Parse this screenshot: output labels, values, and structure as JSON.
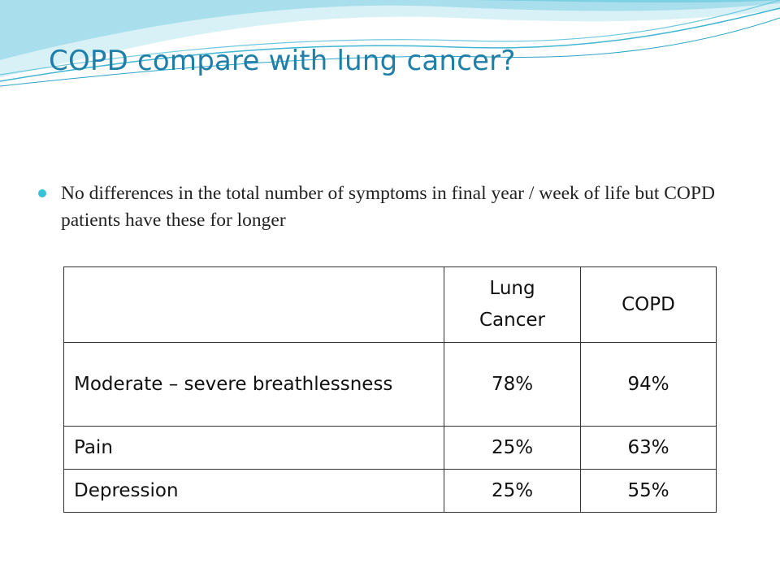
{
  "slide": {
    "title": "COPD compare with lung cancer?",
    "bullets": [
      "No differences in the total number of symptoms  in final year / week of life but COPD patients have these for longer"
    ],
    "colors": {
      "title": "#1f7fa8",
      "bullet": "#35c3d8",
      "wave_light": "#b9e6ef",
      "wave_mid": "#6cc8de",
      "wave_dark": "#2aa5c6"
    }
  },
  "table": {
    "header": {
      "blank": "",
      "col1": "Lung Cancer",
      "col2": "COPD"
    },
    "rows": [
      {
        "label": "Moderate – severe breathlessness",
        "lung_cancer": "78%",
        "copd": "94%"
      },
      {
        "label": "Pain",
        "lung_cancer": "25%",
        "copd": "63%"
      },
      {
        "label": "Depression",
        "lung_cancer": "25%",
        "copd": "55%"
      }
    ]
  }
}
